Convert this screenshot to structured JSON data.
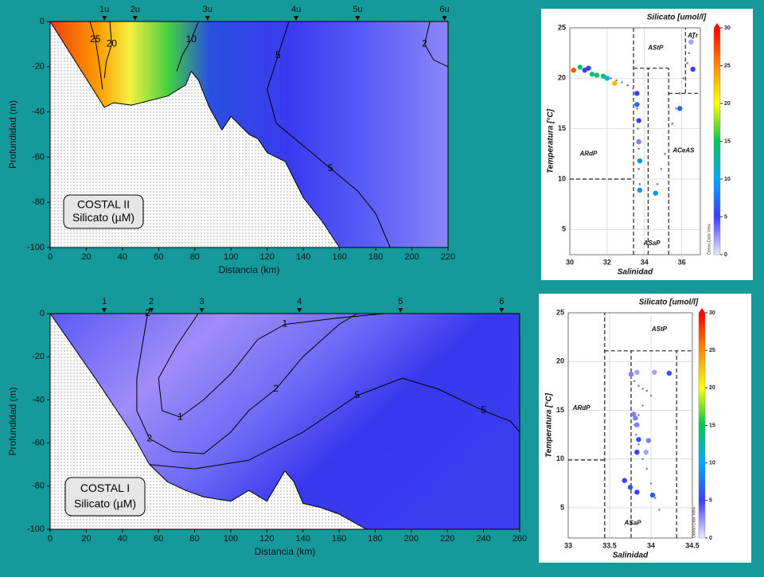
{
  "chart_data": [
    {
      "type": "contour",
      "box_label": [
        "COSTAL II",
        "Silicato (µM)"
      ],
      "xlabel": "Distancia (km)",
      "ylabel": "Profundidad (m)",
      "xlim": [
        0,
        220
      ],
      "ylim": [
        -100,
        0
      ],
      "xticks": [
        0,
        20,
        40,
        60,
        80,
        100,
        120,
        140,
        160,
        180,
        200,
        220
      ],
      "yticks": [
        0,
        -20,
        -40,
        -60,
        -80,
        -100
      ],
      "stations": {
        "x": [
          30,
          47,
          87,
          136,
          170,
          218
        ],
        "labels": [
          "1u",
          "2u",
          "3u",
          "4u",
          "5u",
          "6u"
        ]
      },
      "bottom": {
        "x": [
          0,
          30,
          35,
          45,
          55,
          65,
          75,
          78,
          82,
          88,
          95,
          100,
          105,
          110,
          115,
          120,
          130,
          140,
          150,
          160
        ],
        "y": [
          0,
          -38,
          -36,
          -37,
          -35,
          -33,
          -28,
          -22,
          -26,
          -38,
          -48,
          -42,
          -46,
          -50,
          -52,
          -58,
          -62,
          -78,
          -88,
          -100
        ]
      },
      "contours": [
        {
          "level": 25,
          "x": [
            22,
            25,
            27,
            29
          ],
          "y": [
            0,
            -8,
            -18,
            -30
          ]
        },
        {
          "level": 20,
          "x": [
            33,
            34,
            31,
            30
          ],
          "y": [
            0,
            -10,
            -18,
            -25
          ]
        },
        {
          "level": 10,
          "x": [
            82,
            78,
            73,
            70
          ],
          "y": [
            0,
            -8,
            -15,
            -22
          ]
        },
        {
          "level": 5,
          "x": [
            132,
            126,
            120,
            125,
            140,
            155,
            170,
            180,
            188
          ],
          "y": [
            0,
            -15,
            -30,
            -45,
            -55,
            -65,
            -75,
            -85,
            -100
          ]
        },
        {
          "level": 2,
          "x": [
            210,
            207,
            212,
            220
          ],
          "y": [
            0,
            -10,
            -17,
            -20
          ]
        }
      ]
    },
    {
      "type": "contour",
      "box_label": [
        "COSTAL I",
        "Silicato (µM)"
      ],
      "xlabel": "Distancia (km)",
      "ylabel": "Profundidad (m)",
      "xlim": [
        0,
        260
      ],
      "ylim": [
        -100,
        0
      ],
      "xticks": [
        0,
        20,
        40,
        60,
        80,
        100,
        120,
        140,
        160,
        180,
        200,
        220,
        240,
        260
      ],
      "yticks": [
        0,
        -20,
        -40,
        -60,
        -80,
        -100
      ],
      "stations": {
        "x": [
          30,
          56,
          84,
          138,
          194,
          250
        ],
        "labels": [
          "1",
          "2",
          "3",
          "4",
          "5",
          "6"
        ]
      },
      "bottom": {
        "x": [
          0,
          25,
          45,
          55,
          65,
          75,
          85,
          100,
          110,
          120,
          130,
          135,
          140,
          150,
          160,
          175
        ],
        "y": [
          0,
          -30,
          -55,
          -70,
          -78,
          -82,
          -85,
          -87,
          -82,
          -87,
          -73,
          -78,
          -88,
          -90,
          -93,
          -100
        ]
      },
      "contours": [
        {
          "level": 1,
          "x": [
            82,
            70,
            60,
            62,
            72,
            85,
            100,
            115,
            130,
            160,
            185
          ],
          "y": [
            0,
            -15,
            -30,
            -45,
            -48,
            -40,
            -28,
            -12,
            -5,
            -2,
            0
          ]
        },
        {
          "level": 2,
          "x": [
            54,
            51,
            48,
            48,
            55,
            68,
            85,
            100,
            110,
            125,
            140,
            160,
            170
          ],
          "y": [
            0,
            -15,
            -30,
            -45,
            -58,
            -64,
            -65,
            -55,
            -45,
            -35,
            -20,
            -5,
            0
          ]
        },
        {
          "level": 5,
          "x": [
            55,
            80,
            110,
            140,
            170,
            195,
            215,
            240,
            255,
            260
          ],
          "y": [
            -70,
            -72,
            -68,
            -55,
            -38,
            -30,
            -35,
            -45,
            -50,
            -55
          ]
        }
      ]
    },
    {
      "type": "ts",
      "title": "Silicato [umol/l]",
      "xlabel": "Salinidad",
      "ylabel": "Temperatura [°C]",
      "credit": "Ocean Data View",
      "xlim": [
        30,
        37
      ],
      "ylim": [
        2.5,
        25
      ],
      "xticks": [
        30,
        32,
        34,
        36
      ],
      "yticks": [
        5,
        10,
        15,
        20,
        25
      ],
      "clim": [
        0,
        30
      ],
      "cticks": [
        0,
        5,
        10,
        15,
        20,
        25,
        30
      ],
      "colorscale": [
        "#ece6ff",
        "#3c3cff",
        "#00a8ff",
        "#00c850",
        "#ffff00",
        "#ff8c00",
        "#ff0000"
      ],
      "grid": true,
      "labels": [
        "ATr",
        "AStP",
        "ARdP",
        "ACeAS",
        "ASaP"
      ],
      "boundaries": [
        {
          "x": [
            33.42,
            33.42
          ],
          "y": [
            2.5,
            25
          ]
        },
        {
          "x": [
            30,
            33.42
          ],
          "y": [
            10,
            10
          ]
        },
        {
          "x": [
            33.42,
            35.3
          ],
          "y": [
            21,
            21
          ]
        },
        {
          "x": [
            34.2,
            34.2
          ],
          "y": [
            2.5,
            21
          ]
        },
        {
          "x": [
            35.3,
            35.3
          ],
          "y": [
            2.5,
            21
          ]
        },
        {
          "x": [
            35.3,
            37
          ],
          "y": [
            18.5,
            18.5
          ]
        },
        {
          "x": [
            36.2,
            36.2
          ],
          "y": [
            18.5,
            25
          ]
        }
      ],
      "trace": {
        "x": [
          32.2,
          32.5,
          32.8,
          33.1,
          33.4,
          33.6,
          33.65,
          33.7,
          33.7,
          33.75,
          34.7,
          34.9,
          35.1,
          35.3,
          35.5,
          35.7,
          35.9,
          36.1,
          36.3,
          36.4,
          36.5,
          36.6
        ],
        "y": [
          20.0,
          19.8,
          19.6,
          19.3,
          19.0,
          17.0,
          15.0,
          13.0,
          11.0,
          9.5,
          9.5,
          11,
          12.5,
          14,
          15.5,
          17,
          18.5,
          20,
          21.5,
          22.5,
          23.5,
          24.0
        ]
      },
      "points": {
        "x": [
          30.2,
          30.55,
          30.8,
          31.0,
          31.2,
          31.45,
          31.8,
          32.0,
          32.4,
          33.6,
          33.6,
          33.7,
          33.7,
          33.75,
          33.75,
          34.6,
          35.9,
          36.5,
          36.6
        ],
        "y": [
          20.8,
          21.1,
          20.8,
          21.0,
          20.4,
          20.3,
          20.2,
          20.0,
          19.5,
          18.5,
          17.4,
          15.8,
          13.7,
          11.8,
          8.9,
          8.6,
          17.0,
          23.6,
          20.9
        ],
        "values": [
          27,
          14,
          5,
          5,
          14,
          14,
          14,
          10,
          23,
          5,
          7,
          5,
          3,
          9,
          9,
          9,
          7,
          2,
          5
        ]
      }
    },
    {
      "type": "ts",
      "title": "Silicato [umol/l]",
      "xlabel": "Salinidad",
      "ylabel": "Temperatura [°C]",
      "credit": "Ocean Data View",
      "xlim": [
        33,
        34.5
      ],
      "ylim": [
        1.9,
        25
      ],
      "xticks": [
        33,
        33.5,
        34,
        34.5
      ],
      "yticks": [
        5,
        10,
        15,
        20,
        25
      ],
      "clim": [
        0,
        30
      ],
      "cticks": [
        0,
        5,
        10,
        15,
        20,
        25,
        30
      ],
      "colorscale": [
        "#ece6ff",
        "#3c3cff",
        "#00a8ff",
        "#00c850",
        "#ffff00",
        "#ff8c00",
        "#ff0000"
      ],
      "grid": true,
      "labels": [
        "AStP",
        "ARdP",
        "ASaP"
      ],
      "boundaries": [
        {
          "x": [
            33.44,
            33.44
          ],
          "y": [
            1.9,
            25
          ]
        },
        {
          "x": [
            33,
            33.44
          ],
          "y": [
            9.9,
            9.9
          ]
        },
        {
          "x": [
            33.44,
            34.5
          ],
          "y": [
            21.1,
            21.1
          ]
        },
        {
          "x": [
            34.31,
            34.31
          ],
          "y": [
            1.9,
            21.1
          ]
        },
        {
          "x": [
            33.76,
            33.76
          ],
          "y": [
            1.9,
            21.1
          ]
        }
      ],
      "trace": {
        "x": [
          33.8,
          33.85,
          33.9,
          33.95,
          34.0,
          33.9,
          33.85,
          33.8,
          33.82,
          33.85,
          33.9,
          33.95,
          34.0,
          34.05,
          34.1
        ],
        "y": [
          18.0,
          17.5,
          17.2,
          17.0,
          16.5,
          15.5,
          14.5,
          13.5,
          12.5,
          11.5,
          10.0,
          9.0,
          7.5,
          6.0,
          4.8
        ]
      },
      "points": {
        "x": [
          33.76,
          33.83,
          34.04,
          34.22,
          33.79,
          33.81,
          33.83,
          33.85,
          33.83,
          33.97,
          33.94,
          33.68,
          33.75,
          33.83,
          34.02
        ],
        "y": [
          18.7,
          18.9,
          18.9,
          18.8,
          14.6,
          14.2,
          13.5,
          12.0,
          10.7,
          11.9,
          10.7,
          7.8,
          7.1,
          6.6,
          6.3
        ],
        "values": [
          3,
          2,
          2,
          6,
          3,
          3,
          3,
          6,
          5,
          3,
          2,
          5,
          6,
          5,
          6
        ]
      }
    }
  ]
}
